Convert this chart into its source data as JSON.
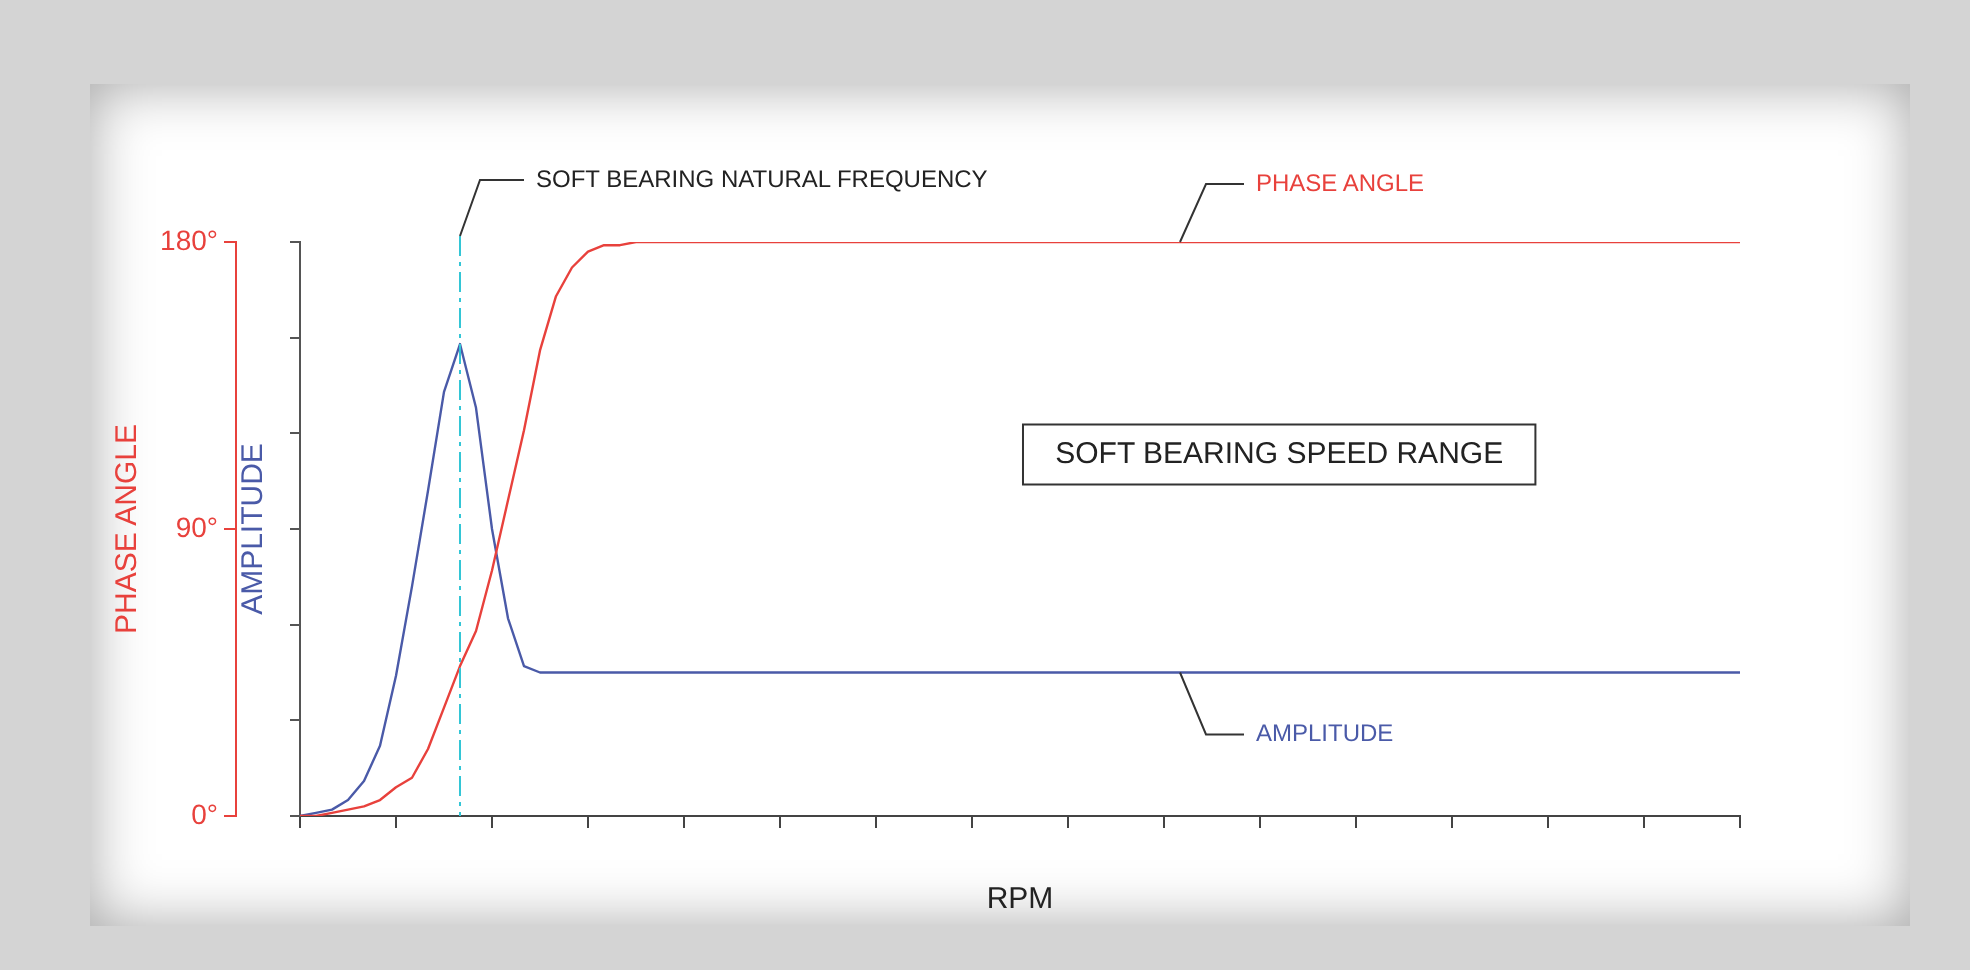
{
  "chart_data": {
    "type": "line",
    "xlabel": "RPM",
    "ylabel": "PHASE ANGLE",
    "y2label": "AMPLITUDE",
    "marker": "none",
    "tick_labels": "y",
    "grid": false,
    "categories": [
      null,
      null,
      null,
      null,
      null,
      null,
      null,
      null,
      null,
      null,
      null,
      null,
      null,
      null,
      null,
      null,
      null,
      null,
      null,
      null,
      null,
      null,
      null,
      null,
      null,
      null,
      null,
      null,
      null,
      null,
      null,
      null,
      null,
      null,
      null,
      null,
      null,
      null,
      null,
      null,
      null,
      null,
      null,
      null,
      null,
      null,
      null,
      null,
      null,
      null,
      null,
      null,
      null,
      null,
      null,
      null,
      null,
      null,
      null,
      null,
      null,
      null,
      null,
      null,
      null,
      null,
      null,
      null,
      null,
      null,
      null,
      null,
      null,
      null,
      null,
      null,
      null,
      null,
      null,
      null,
      null,
      null,
      null,
      null,
      null,
      null,
      null,
      null,
      null,
      null,
      null
    ],
    "ylim": [
      0,
      180
    ],
    "yticks": [
      {
        "value": 0,
        "label": "0°"
      },
      {
        "value": 90,
        "label": "90°"
      },
      {
        "value": 180,
        "label": "180°"
      }
    ],
    "series": [
      {
        "name": "PHASE ANGLE",
        "color": "#e8413c",
        "values": [
          0,
          0,
          1,
          2,
          3,
          5,
          9,
          12,
          21,
          34,
          47,
          58,
          77,
          99,
          121,
          146,
          163,
          172,
          177,
          179,
          179,
          180,
          180,
          180,
          180,
          180,
          180,
          180,
          180,
          180,
          180,
          180,
          180,
          180,
          180,
          180,
          180,
          180,
          180,
          180,
          180,
          180,
          180,
          180,
          180,
          180,
          180,
          180,
          180,
          180,
          180,
          180,
          180,
          180,
          180,
          180,
          180,
          180,
          180,
          180,
          180,
          180,
          180,
          180,
          180,
          180,
          180,
          180,
          180,
          180,
          180,
          180,
          180,
          180,
          180,
          180,
          180,
          180,
          180,
          180,
          180,
          180,
          180,
          180,
          180,
          180,
          180,
          180,
          180,
          180,
          180
        ]
      },
      {
        "name": "AMPLITUDE",
        "color": "#4a5aa8",
        "values": [
          0,
          1,
          2,
          5,
          11,
          22,
          44,
          72,
          102,
          133,
          148,
          128,
          90,
          62,
          47,
          45,
          45,
          45,
          45,
          45,
          45,
          45,
          45,
          45,
          45,
          45,
          45,
          45,
          45,
          45,
          45,
          45,
          45,
          45,
          45,
          45,
          45,
          45,
          45,
          45,
          45,
          45,
          45,
          45,
          45,
          45,
          45,
          45,
          45,
          45,
          45,
          45,
          45,
          45,
          45,
          45,
          45,
          45,
          45,
          45,
          45,
          45,
          45,
          45,
          45,
          45,
          45,
          45,
          45,
          45,
          45,
          45,
          45,
          45,
          45,
          45,
          45,
          45,
          45,
          45,
          45,
          45,
          45,
          45,
          45,
          45,
          45,
          45,
          45,
          45,
          45
        ]
      }
    ],
    "annotations": [
      "SOFT BEARING NATURAL FREQUENCY",
      "SOFT BEARING SPEED RANGE"
    ]
  }
}
